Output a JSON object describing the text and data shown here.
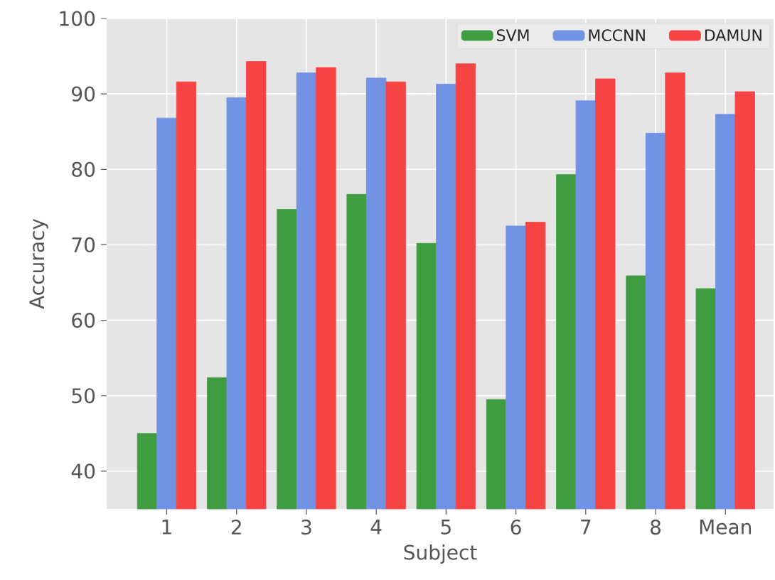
{
  "chart_data": {
    "type": "bar",
    "xlabel": "Subject",
    "ylabel": "Accuracy",
    "categories": [
      "1",
      "2",
      "3",
      "4",
      "5",
      "6",
      "7",
      "8",
      "Mean"
    ],
    "series": [
      {
        "name": "SVM",
        "color": "#409c40",
        "values": [
          45.0,
          52.4,
          74.7,
          76.7,
          70.2,
          49.5,
          79.3,
          65.9,
          64.2
        ]
      },
      {
        "name": "MCCNN",
        "color": "#7292e4",
        "values": [
          86.8,
          89.5,
          92.8,
          92.1,
          91.3,
          72.5,
          89.1,
          84.8,
          87.3
        ]
      },
      {
        "name": "DAMUN",
        "color": "#f64444",
        "values": [
          91.6,
          94.3,
          93.5,
          91.6,
          94.0,
          73.0,
          92.0,
          92.8,
          90.3
        ]
      }
    ],
    "ylim": [
      35,
      100
    ],
    "yticks": [
      40,
      50,
      60,
      70,
      80,
      90,
      100
    ],
    "grid": true,
    "legend": "top right"
  }
}
